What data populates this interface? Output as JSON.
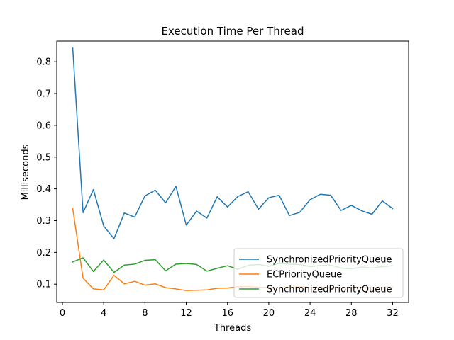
{
  "chart_data": {
    "type": "line",
    "title": "Execution Time Per Thread",
    "xlabel": "Threads",
    "ylabel": "Milliseconds",
    "xlim": [
      -0.55,
      33.55
    ],
    "ylim": [
      0.0425,
      0.865
    ],
    "xticks": [
      0,
      4,
      8,
      12,
      16,
      20,
      24,
      28,
      32
    ],
    "yticks": [
      0.1,
      0.2,
      0.3,
      0.4,
      0.5,
      0.6,
      0.7,
      0.8
    ],
    "xtick_labels": [
      "0",
      "4",
      "8",
      "12",
      "16",
      "20",
      "24",
      "28",
      "32"
    ],
    "ytick_labels": [
      "0.1",
      "0.2",
      "0.3",
      "0.4",
      "0.5",
      "0.6",
      "0.7",
      "0.8"
    ],
    "legend_position": "lower-right",
    "grid": false,
    "x": [
      1,
      2,
      3,
      4,
      5,
      6,
      7,
      8,
      9,
      10,
      11,
      12,
      13,
      14,
      15,
      16,
      17,
      18,
      19,
      20,
      21,
      22,
      23,
      24,
      25,
      26,
      27,
      28,
      29,
      30,
      31,
      32
    ],
    "series": [
      {
        "name": "SynchronizedPriorityQueue",
        "color": "#1f77b4",
        "values": [
          0.843,
          0.325,
          0.398,
          0.283,
          0.243,
          0.324,
          0.311,
          0.378,
          0.396,
          0.356,
          0.408,
          0.286,
          0.33,
          0.308,
          0.375,
          0.343,
          0.376,
          0.391,
          0.336,
          0.372,
          0.38,
          0.316,
          0.326,
          0.366,
          0.383,
          0.38,
          0.332,
          0.348,
          0.331,
          0.32,
          0.362,
          0.338
        ]
      },
      {
        "name": "ECPriorityQueue",
        "color": "#ff7f0e",
        "values": [
          0.338,
          0.119,
          0.085,
          0.082,
          0.128,
          0.101,
          0.109,
          0.097,
          0.101,
          0.089,
          0.085,
          0.08,
          0.081,
          0.082,
          0.087,
          0.088,
          0.092,
          0.093,
          0.09,
          0.09,
          0.088,
          0.091,
          0.093,
          0.09,
          0.091,
          0.09,
          0.089,
          0.09,
          0.091,
          0.089,
          0.09,
          0.091
        ]
      },
      {
        "name": "SynchronizedPriorityQueue",
        "color": "#2ca02c",
        "values": [
          0.17,
          0.183,
          0.14,
          0.176,
          0.137,
          0.16,
          0.163,
          0.175,
          0.177,
          0.142,
          0.163,
          0.165,
          0.162,
          0.141,
          0.15,
          0.158,
          0.147,
          0.159,
          0.162,
          0.156,
          0.165,
          0.163,
          0.162,
          0.155,
          0.158,
          0.16,
          0.151,
          0.148,
          0.154,
          0.151,
          0.155,
          0.158
        ]
      }
    ]
  }
}
